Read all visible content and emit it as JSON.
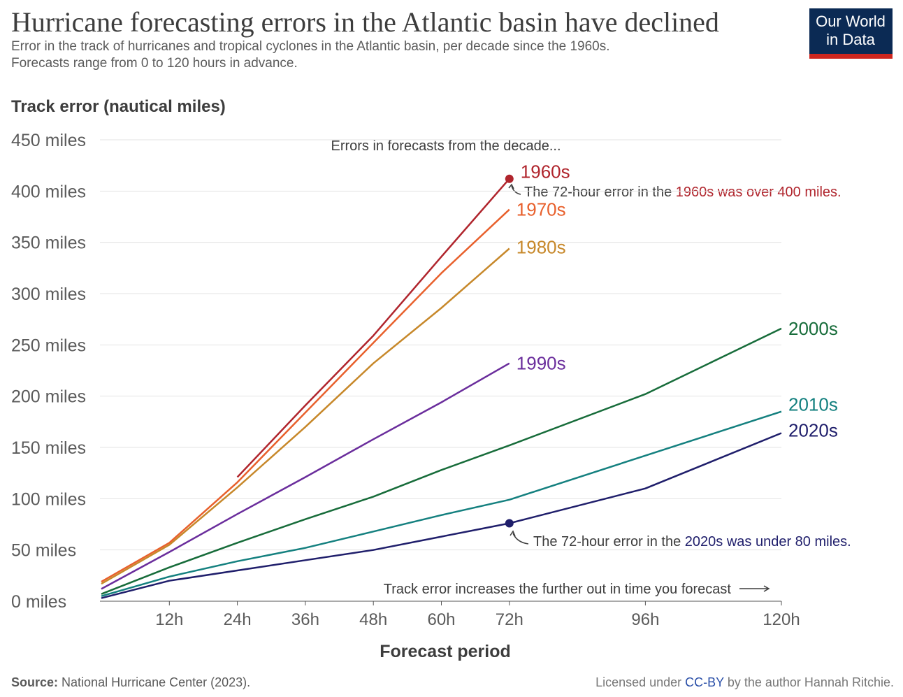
{
  "chart_data": {
    "type": "line",
    "title": "Hurricane forecasting errors in the Atlantic basin have declined",
    "subtitle": [
      "Error in the track of hurricanes and tropical cyclones in the Atlantic basin, per decade since the 1960s.",
      "Forecasts range from 0 to 120 hours in advance."
    ],
    "logo": [
      "Our World",
      "in Data"
    ],
    "y_label": "Track error (nautical miles)",
    "x_label": "Forecast period",
    "x": [
      0,
      12,
      24,
      36,
      48,
      60,
      72,
      96,
      120
    ],
    "xlim": [
      0,
      120
    ],
    "xticks": [
      {
        "value": 12,
        "label": "12h"
      },
      {
        "value": 24,
        "label": "24h"
      },
      {
        "value": 36,
        "label": "36h"
      },
      {
        "value": 48,
        "label": "48h"
      },
      {
        "value": 60,
        "label": "60h"
      },
      {
        "value": 72,
        "label": "72h"
      },
      {
        "value": 96,
        "label": "96h"
      },
      {
        "value": 120,
        "label": "120h"
      }
    ],
    "ylim": [
      0,
      450
    ],
    "yticks": [
      {
        "value": 0,
        "label": "0 miles"
      },
      {
        "value": 50,
        "label": "50 miles"
      },
      {
        "value": 100,
        "label": "100 miles"
      },
      {
        "value": 150,
        "label": "150 miles"
      },
      {
        "value": 200,
        "label": "200 miles"
      },
      {
        "value": 250,
        "label": "250 miles"
      },
      {
        "value": 300,
        "label": "300 miles"
      },
      {
        "value": 350,
        "label": "350 miles"
      },
      {
        "value": 400,
        "label": "400 miles"
      },
      {
        "value": 450,
        "label": "450 miles"
      }
    ],
    "grid": true,
    "series": [
      {
        "name": "1960s",
        "color": "#b0252d",
        "values": [
          null,
          null,
          121,
          191,
          259,
          336,
          412,
          null,
          null
        ]
      },
      {
        "name": "1970s",
        "color": "#e8602c",
        "values": [
          19,
          57,
          116,
          184,
          252,
          320,
          382,
          null,
          null
        ]
      },
      {
        "name": "1980s",
        "color": "#c7882a",
        "values": [
          17,
          55,
          111,
          170,
          232,
          286,
          344,
          null,
          null
        ]
      },
      {
        "name": "1990s",
        "color": "#6a2d9c",
        "values": [
          12,
          48,
          85,
          121,
          158,
          194,
          232,
          null,
          null
        ]
      },
      {
        "name": "2000s",
        "color": "#176c3a",
        "values": [
          7,
          33,
          57,
          80,
          102,
          128,
          152,
          202,
          266
        ]
      },
      {
        "name": "2010s",
        "color": "#14807f",
        "values": [
          5,
          24,
          39,
          52,
          68,
          84,
          99,
          142,
          185
        ]
      },
      {
        "name": "2020s",
        "color": "#1f1e6b",
        "values": [
          3,
          20,
          30,
          40,
          50,
          63,
          76,
          110,
          164
        ]
      }
    ],
    "annotations": {
      "decade": "Errors in forecasts from the decade...",
      "high": [
        "The 72-hour error in the ",
        "1960s was over 400 miles."
      ],
      "low": [
        "The 72-hour error in the ",
        "2020s was under 80 miles."
      ],
      "trend": "Track error increases the further out in time you forecast"
    },
    "source": [
      "Source:",
      " National Hurricane Center (2023)."
    ],
    "license": [
      "Licensed under ",
      "CC-BY",
      " by the author Hannah Ritchie."
    ]
  }
}
